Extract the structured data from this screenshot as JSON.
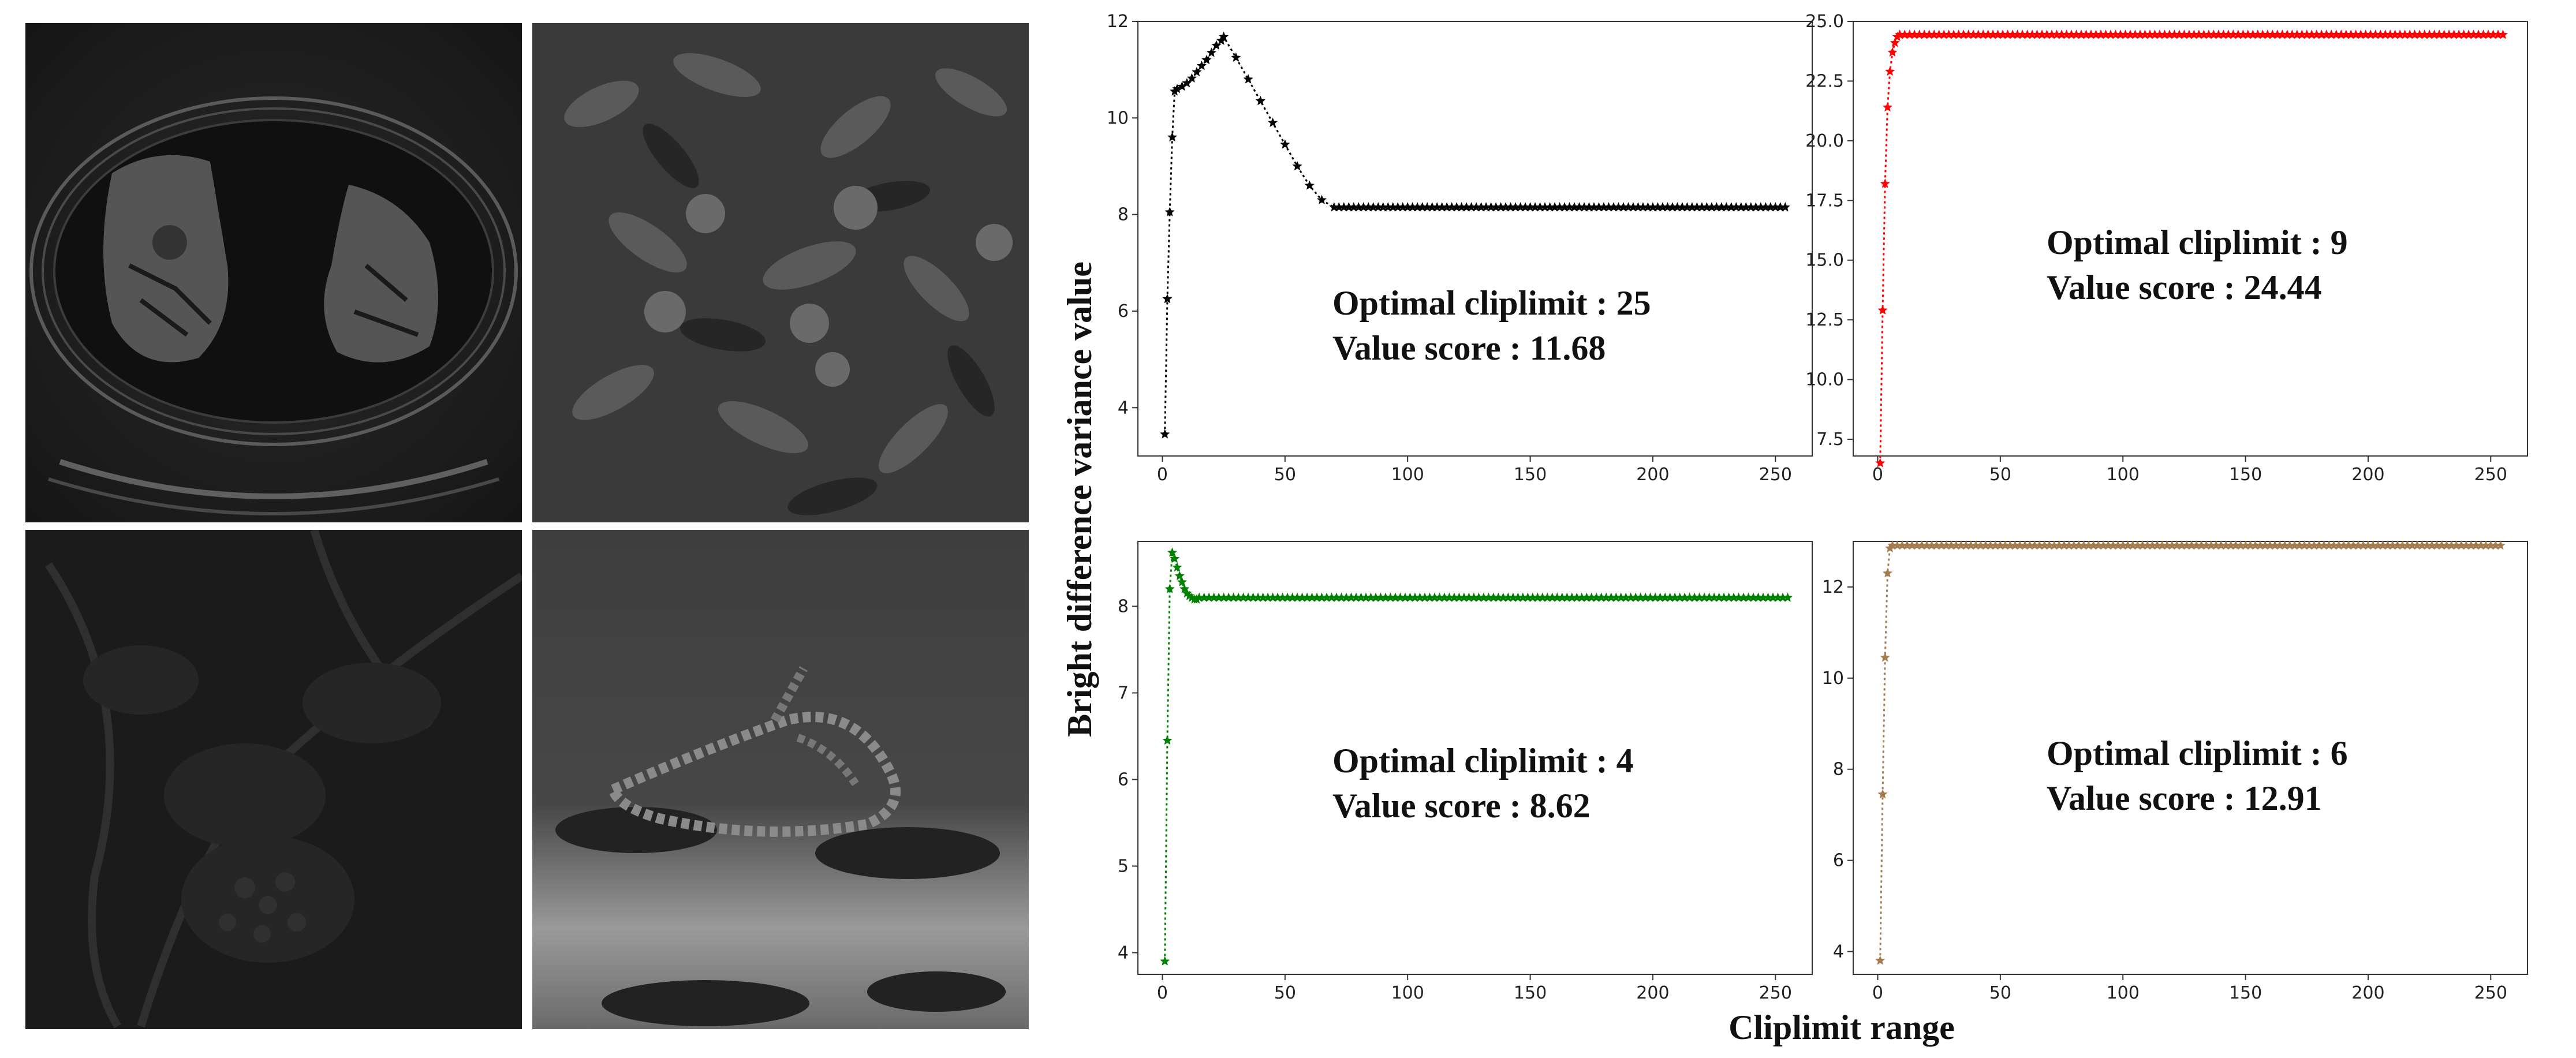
{
  "figure": {
    "ylabel": "Bright difference variance value",
    "xlabel": "Cliplimit range"
  },
  "images": [
    {
      "name": "ct-lung-scan"
    },
    {
      "name": "fruit-tree-foliage"
    },
    {
      "name": "dark-plant-foliage"
    },
    {
      "name": "rope-on-ground"
    }
  ],
  "chart_data": [
    {
      "type": "line",
      "color": "#000000",
      "marker": "star",
      "annotation": {
        "line1": "Optimal cliplimit :   25",
        "line2": "Value score :   11.68"
      },
      "xlim": [
        -10,
        265
      ],
      "ylim": [
        3.0,
        12.0
      ],
      "xticks": [
        0,
        50,
        100,
        150,
        200,
        250
      ],
      "yticks": [
        4,
        6,
        8,
        10,
        12
      ],
      "yticklabels": [
        "4",
        "6",
        "8",
        "10",
        "12"
      ],
      "x": [
        1,
        2,
        3,
        4,
        5,
        6,
        8,
        10,
        12,
        14,
        16,
        18,
        20,
        22,
        24,
        25,
        30,
        35,
        40,
        45,
        50,
        55,
        60,
        65,
        70
      ],
      "y": [
        3.45,
        6.25,
        8.05,
        9.6,
        10.55,
        10.6,
        10.65,
        10.72,
        10.82,
        10.95,
        11.08,
        11.2,
        11.35,
        11.5,
        11.6,
        11.68,
        11.25,
        10.8,
        10.35,
        9.9,
        9.45,
        9.0,
        8.6,
        8.3,
        8.15
      ],
      "plateau": {
        "from": 70,
        "to": 255,
        "value": 8.15
      }
    },
    {
      "type": "line",
      "color": "#ff0000",
      "marker": "star",
      "annotation": {
        "line1": "Optimal cliplimit :   9",
        "line2": "Value score :   24.44"
      },
      "xlim": [
        -10,
        265
      ],
      "ylim": [
        6.8,
        25.0
      ],
      "xticks": [
        0,
        50,
        100,
        150,
        200,
        250
      ],
      "yticks": [
        7.5,
        10.0,
        12.5,
        15.0,
        17.5,
        20.0,
        22.5,
        25.0
      ],
      "yticklabels": [
        "7.5",
        "10.0",
        "12.5",
        "15.0",
        "17.5",
        "20.0",
        "22.5",
        "25.0"
      ],
      "x": [
        1,
        2,
        3,
        4,
        5,
        6,
        7,
        8,
        9
      ],
      "y": [
        6.5,
        12.9,
        18.2,
        21.4,
        22.9,
        23.7,
        24.1,
        24.35,
        24.44
      ],
      "plateau": {
        "from": 9,
        "to": 255,
        "value": 24.44
      }
    },
    {
      "type": "line",
      "color": "#008000",
      "marker": "star",
      "annotation": {
        "line1": "Optimal cliplimit :   4",
        "line2": "Value score :   8.62"
      },
      "xlim": [
        -10,
        265
      ],
      "ylim": [
        3.75,
        8.75
      ],
      "xticks": [
        0,
        50,
        100,
        150,
        200,
        250
      ],
      "yticks": [
        4,
        5,
        6,
        7,
        8
      ],
      "yticklabels": [
        "4",
        "5",
        "6",
        "7",
        "8"
      ],
      "x": [
        1,
        2,
        3,
        4,
        5,
        6,
        7,
        8,
        9,
        10,
        11,
        12,
        13,
        14,
        15
      ],
      "y": [
        3.9,
        6.45,
        8.2,
        8.62,
        8.55,
        8.45,
        8.35,
        8.28,
        8.2,
        8.15,
        8.12,
        8.1,
        8.08,
        8.08,
        8.1
      ],
      "plateau": {
        "from": 15,
        "to": 255,
        "value": 8.1
      }
    },
    {
      "type": "line",
      "color": "#a57c50",
      "marker": "star",
      "annotation": {
        "line1": "Optimal cliplimit :   6",
        "line2": "Value score :   12.91"
      },
      "xlim": [
        -10,
        265
      ],
      "ylim": [
        3.5,
        13.0
      ],
      "xticks": [
        0,
        50,
        100,
        150,
        200,
        250
      ],
      "yticks": [
        4,
        6,
        8,
        10,
        12
      ],
      "yticklabels": [
        "4",
        "6",
        "8",
        "10",
        "12"
      ],
      "x": [
        1,
        2,
        3,
        4,
        5,
        6
      ],
      "y": [
        3.8,
        7.45,
        10.45,
        12.3,
        12.85,
        12.91
      ],
      "plateau": {
        "from": 6,
        "to": 255,
        "value": 12.91
      }
    }
  ]
}
